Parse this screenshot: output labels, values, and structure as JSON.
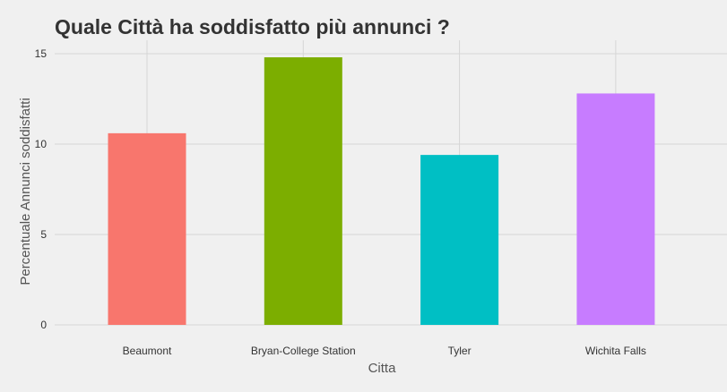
{
  "chart_data": {
    "type": "bar",
    "title": "Quale Città ha soddisfatto più annunci ?",
    "xlabel": "Citta",
    "ylabel": "Percentuale Annunci soddisfatti",
    "categories": [
      "Beaumont",
      "Bryan-College Station",
      "Tyler",
      "Wichita Falls"
    ],
    "values": [
      10.6,
      14.8,
      9.4,
      12.8
    ],
    "colors": [
      "#F8766D",
      "#7CAE00",
      "#00BFC4",
      "#C77CFF"
    ],
    "ylim": [
      0,
      15
    ],
    "yticks": [
      0,
      5,
      10,
      15
    ],
    "grid": true,
    "legend": "none"
  }
}
